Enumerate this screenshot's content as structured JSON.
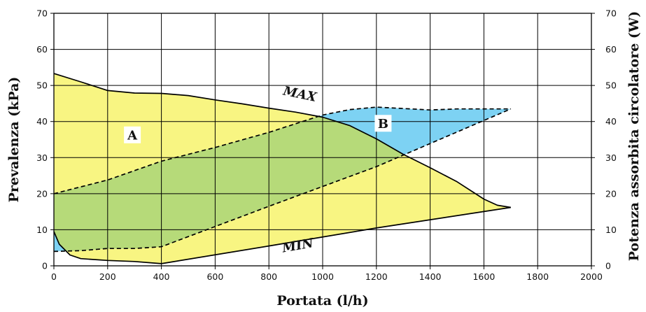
{
  "chart_data": {
    "type": "area",
    "xlabel": "Portata (l/h)",
    "ylabel": "Prevalenza (kPa)",
    "y2label": "Potenza assorbita circolatore (W)",
    "xlim": [
      0,
      2000
    ],
    "ylim": [
      0,
      70
    ],
    "y2lim": [
      0,
      70
    ],
    "xticks": [
      0,
      200,
      400,
      600,
      800,
      1000,
      1200,
      1400,
      1600,
      1800,
      2000
    ],
    "yticks": [
      0,
      10,
      20,
      30,
      40,
      50,
      60,
      70
    ],
    "y2ticks": [
      0,
      10,
      20,
      30,
      40,
      50,
      60,
      70
    ],
    "grid": true,
    "colors": {
      "head_area": "#f8f582",
      "power_area": "#7dd2f3",
      "overlap_area": "#b6da79",
      "grid": "#000000"
    },
    "series": [
      {
        "name": "MAX",
        "axis": "left",
        "style": "solid",
        "x": [
          0,
          100,
          200,
          300,
          400,
          500,
          600,
          700,
          800,
          900,
          1000,
          1100,
          1200,
          1300,
          1400,
          1500,
          1600,
          1650,
          1700
        ],
        "y": [
          53.3,
          51.0,
          48.6,
          47.9,
          47.8,
          47.2,
          46.0,
          44.9,
          43.7,
          42.6,
          41.2,
          38.9,
          35.2,
          30.9,
          27.2,
          23.3,
          18.5,
          16.8,
          16.2
        ]
      },
      {
        "name": "MIN",
        "axis": "left",
        "style": "solid",
        "x": [
          0,
          20,
          60,
          100,
          200,
          300,
          400,
          800,
          1200,
          1700
        ],
        "y": [
          9.5,
          6.0,
          3.0,
          2.0,
          1.5,
          1.2,
          0.6,
          5.5,
          10.5,
          16.2
        ]
      },
      {
        "axis": "right",
        "style": "dashed",
        "x": [
          0,
          200,
          400,
          600,
          800,
          1000,
          1100,
          1200,
          1300,
          1400,
          1500,
          1600,
          1700
        ],
        "y": [
          20.0,
          23.8,
          29.0,
          32.8,
          37.0,
          41.8,
          43.3,
          44.0,
          43.6,
          43.2,
          43.5,
          43.5,
          43.5
        ]
      },
      {
        "axis": "right",
        "style": "dashed",
        "x": [
          0,
          100,
          200,
          300,
          400,
          800,
          1200,
          1700
        ],
        "y": [
          4.0,
          4.2,
          4.8,
          4.8,
          5.3,
          16.5,
          27.5,
          43.5
        ]
      }
    ],
    "annotations": [
      {
        "text": "MAX",
        "x": 912,
        "y": 46.5
      },
      {
        "text": "MIN",
        "x": 910,
        "y": 4.5
      },
      {
        "text": "A",
        "x": 292,
        "y": 36.3
      },
      {
        "text": "B",
        "x": 1225,
        "y": 39.5
      }
    ]
  }
}
